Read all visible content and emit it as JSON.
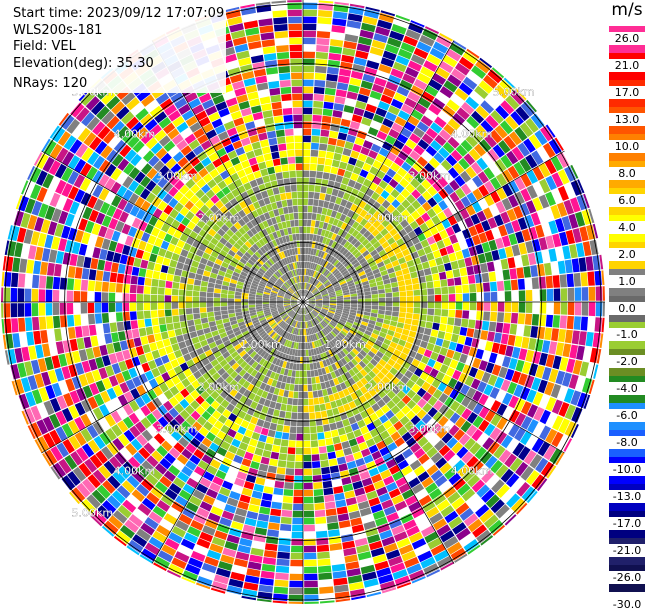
{
  "header": {
    "start_time": "Start time: 2023/09/12 17:07:09",
    "instrument": "WLS200s-181",
    "field": "Field: VEL",
    "elevation": "Elevation(deg): 35.30",
    "nrays": "NRays: 120"
  },
  "colorbar": {
    "unit": "m/s",
    "ticks": [
      "26.0",
      "21.0",
      "17.0",
      "13.0",
      "10.0",
      "8.0",
      "6.0",
      "4.0",
      "2.0",
      "1.0",
      "0.0",
      "-1.0",
      "-2.0",
      "-4.0",
      "-6.0",
      "-8.0",
      "-10.0",
      "-13.0",
      "-17.0",
      "-21.0",
      "-26.0",
      "-30.0"
    ],
    "colors": [
      "#ff2d95",
      "#ff0000",
      "#ff2a00",
      "#ff5500",
      "#ff8000",
      "#ffaa00",
      "#ffd500",
      "#ffff00",
      "#ffd400",
      "#808080",
      "#6a6a6a",
      "#9acd32",
      "#6b8e23",
      "#228b22",
      "#1e90ff",
      "#1a5fff",
      "#0000ff",
      "#0000c0",
      "#000080",
      "#20206a",
      "#101050"
    ]
  },
  "ppi": {
    "range_rings": [
      {
        "label": "1.00km",
        "angle": 45
      },
      {
        "label": "1.00km",
        "angle": 135
      },
      {
        "label": "2.00km",
        "angle": 45
      },
      {
        "label": "2.00km",
        "angle": 135
      },
      {
        "label": "2.00km",
        "angle": 225
      },
      {
        "label": "2.00km",
        "angle": 315
      },
      {
        "label": "3.00km",
        "angle": 45
      },
      {
        "label": "3.00km",
        "angle": 135
      },
      {
        "label": "3.00km",
        "angle": 225
      },
      {
        "label": "3.00km",
        "angle": 315
      },
      {
        "label": "4.00km",
        "angle": 45
      },
      {
        "label": "4.00km",
        "angle": 135
      },
      {
        "label": "4.00km",
        "angle": 225
      },
      {
        "label": "4.00km",
        "angle": 315
      },
      {
        "label": "5.00km",
        "angle": 135
      },
      {
        "label": "5.00km",
        "angle": 225
      },
      {
        "label": "5.00km",
        "angle": 315
      }
    ]
  }
}
